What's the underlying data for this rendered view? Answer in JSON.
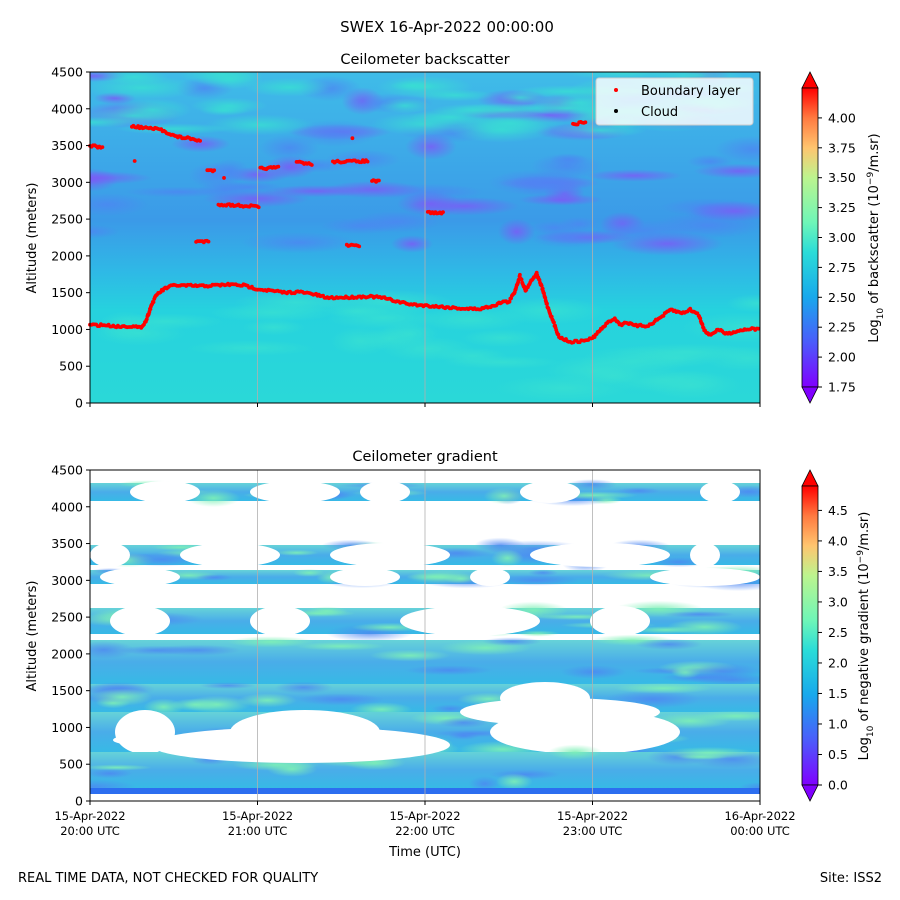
{
  "figure": {
    "title": "SWEX 16-Apr-2022 00:00:00",
    "footer_left": "REAL TIME DATA, NOT CHECKED FOR QUALITY",
    "footer_right": "Site: ISS2",
    "xlabel": "Time (UTC)"
  },
  "chart_data": [
    {
      "type": "heatmap",
      "title": "Ceilometer backscatter",
      "ylabel": "Altitude (meters)",
      "ylim": [
        0,
        4500
      ],
      "yticks": [
        0,
        500,
        1000,
        1500,
        2000,
        2500,
        3000,
        3500,
        4000,
        4500
      ],
      "x_ticks_utc": [
        "2022-04-15T20:00",
        "2022-04-15T21:00",
        "2022-04-15T22:00",
        "2022-04-15T23:00",
        "2022-04-16T00:00"
      ],
      "grid": "vertical lines at x ticks",
      "colorbar": {
        "label": "Log10 of backscatter (10^-9/m.sr)",
        "label_parts": [
          "Log",
          "10",
          " of backscatter (10",
          "−9",
          "/m.sr)"
        ],
        "range": [
          1.75,
          4.25
        ],
        "ticks": [
          "1.75",
          "2.00",
          "2.25",
          "2.50",
          "2.75",
          "3.00",
          "3.25",
          "3.50",
          "3.75",
          "4.00"
        ],
        "colormap": "rainbow",
        "extend": "both"
      },
      "legend": {
        "placement": "top-right",
        "entries": [
          {
            "label": "Boundary layer",
            "color": "#ff0000"
          },
          {
            "label": "Cloud",
            "color": "#000000"
          }
        ]
      },
      "boundary_layer": {
        "main": [
          [
            "2022-04-15T20:00",
            1060
          ],
          [
            "2022-04-15T20:05",
            1060
          ],
          [
            "2022-04-15T20:10",
            1040
          ],
          [
            "2022-04-15T20:15",
            1045
          ],
          [
            "2022-04-15T20:18",
            1020
          ],
          [
            "2022-04-15T20:20",
            1110
          ],
          [
            "2022-04-15T20:22",
            1330
          ],
          [
            "2022-04-15T20:24",
            1480
          ],
          [
            "2022-04-15T20:27",
            1560
          ],
          [
            "2022-04-15T20:30",
            1600
          ],
          [
            "2022-04-15T20:40",
            1590
          ],
          [
            "2022-04-15T20:50",
            1610
          ],
          [
            "2022-04-15T20:55",
            1600
          ],
          [
            "2022-04-15T21:00",
            1550
          ],
          [
            "2022-04-15T21:10",
            1500
          ],
          [
            "2022-04-15T21:15",
            1510
          ],
          [
            "2022-04-15T21:20",
            1480
          ],
          [
            "2022-04-15T21:25",
            1430
          ],
          [
            "2022-04-15T21:35",
            1440
          ],
          [
            "2022-04-15T21:40",
            1450
          ],
          [
            "2022-04-15T21:45",
            1430
          ],
          [
            "2022-04-15T21:50",
            1380
          ],
          [
            "2022-04-15T21:55",
            1340
          ],
          [
            "2022-04-15T22:05",
            1310
          ],
          [
            "2022-04-15T22:15",
            1280
          ],
          [
            "2022-04-15T22:20",
            1280
          ],
          [
            "2022-04-15T22:25",
            1330
          ],
          [
            "2022-04-15T22:28",
            1380
          ],
          [
            "2022-04-15T22:30",
            1370
          ],
          [
            "2022-04-15T22:32",
            1500
          ],
          [
            "2022-04-15T22:34",
            1730
          ],
          [
            "2022-04-15T22:36",
            1530
          ],
          [
            "2022-04-15T22:38",
            1660
          ],
          [
            "2022-04-15T22:40",
            1760
          ],
          [
            "2022-04-15T22:42",
            1560
          ],
          [
            "2022-04-15T22:44",
            1300
          ],
          [
            "2022-04-15T22:46",
            1100
          ],
          [
            "2022-04-15T22:48",
            900
          ],
          [
            "2022-04-15T22:52",
            830
          ],
          [
            "2022-04-15T22:56",
            840
          ],
          [
            "2022-04-15T23:00",
            880
          ],
          [
            "2022-04-15T23:03",
            1000
          ],
          [
            "2022-04-15T23:06",
            1110
          ],
          [
            "2022-04-15T23:08",
            1150
          ],
          [
            "2022-04-15T23:10",
            1060
          ],
          [
            "2022-04-15T23:12",
            1100
          ],
          [
            "2022-04-15T23:15",
            1050
          ],
          [
            "2022-04-15T23:20",
            1050
          ],
          [
            "2022-04-15T23:25",
            1180
          ],
          [
            "2022-04-15T23:28",
            1270
          ],
          [
            "2022-04-15T23:32",
            1220
          ],
          [
            "2022-04-15T23:35",
            1270
          ],
          [
            "2022-04-15T23:38",
            1200
          ],
          [
            "2022-04-15T23:40",
            1000
          ],
          [
            "2022-04-15T23:42",
            920
          ],
          [
            "2022-04-15T23:45",
            1000
          ],
          [
            "2022-04-15T23:48",
            940
          ],
          [
            "2022-04-15T23:52",
            980
          ],
          [
            "2022-04-15T23:56",
            1010
          ],
          [
            "2022-04-16T00:00",
            1000
          ]
        ],
        "segments": [
          [
            [
              "2022-04-15T20:00",
              3500
            ],
            [
              "2022-04-15T20:05",
              3470
            ]
          ],
          [
            [
              "2022-04-15T20:15",
              3760
            ],
            [
              "2022-04-15T20:25",
              3720
            ],
            [
              "2022-04-15T20:31",
              3620
            ],
            [
              "2022-04-15T20:35",
              3600
            ],
            [
              "2022-04-15T20:40",
              3560
            ]
          ],
          [
            [
              "2022-04-15T20:42",
              3160
            ],
            [
              "2022-04-15T20:45",
              3160
            ]
          ],
          [
            [
              "2022-04-15T20:46",
              2700
            ],
            [
              "2022-04-15T21:01",
              2670
            ]
          ],
          [
            [
              "2022-04-15T20:38",
              2190
            ],
            [
              "2022-04-15T20:43",
              2190
            ]
          ],
          [
            [
              "2022-04-15T21:01",
              3190
            ],
            [
              "2022-04-15T21:08",
              3200
            ]
          ],
          [
            [
              "2022-04-15T21:14",
              3280
            ],
            [
              "2022-04-15T21:20",
              3240
            ]
          ],
          [
            [
              "2022-04-15T21:27",
              3280
            ],
            [
              "2022-04-15T21:40",
              3290
            ]
          ],
          [
            [
              "2022-04-15T21:41",
              3020
            ],
            [
              "2022-04-15T21:44",
              3010
            ]
          ],
          [
            [
              "2022-04-15T21:32",
              2140
            ],
            [
              "2022-04-15T21:37",
              2140
            ]
          ],
          [
            [
              "2022-04-15T22:01",
              2590
            ],
            [
              "2022-04-15T22:07",
              2580
            ]
          ],
          [
            [
              "2022-04-15T22:53",
              3790
            ],
            [
              "2022-04-15T22:58",
              3820
            ]
          ]
        ],
        "points": [
          [
            "2022-04-15T20:16",
            3290
          ],
          [
            "2022-04-15T20:48",
            3060
          ],
          [
            "2022-04-15T21:34",
            3600
          ]
        ]
      }
    },
    {
      "type": "heatmap",
      "title": "Ceilometer gradient",
      "ylabel": "Altitude (meters)",
      "xlabel": "Time (UTC)",
      "ylim": [
        0,
        4500
      ],
      "yticks": [
        0,
        500,
        1000,
        1500,
        2000,
        2500,
        3000,
        3500,
        4000,
        4500
      ],
      "x_ticks": [
        {
          "line1": "15-Apr-2022",
          "line2": "20:00 UTC"
        },
        {
          "line1": "15-Apr-2022",
          "line2": "21:00 UTC"
        },
        {
          "line1": "15-Apr-2022",
          "line2": "22:00 UTC"
        },
        {
          "line1": "15-Apr-2022",
          "line2": "23:00 UTC"
        },
        {
          "line1": "16-Apr-2022",
          "line2": "00:00 UTC"
        }
      ],
      "grid": "vertical lines at x ticks",
      "colorbar": {
        "label": "Log10 of negative gradient (10^-9/m.sr)",
        "label_parts": [
          "Log",
          "10",
          " of negative gradient (10",
          "−9",
          "/m.sr)"
        ],
        "range": [
          0,
          4.9
        ],
        "ticks": [
          "0.0",
          "0.5",
          "1.0",
          "1.5",
          "2.0",
          "2.5",
          "3.0",
          "3.5",
          "4.0",
          "4.5"
        ],
        "colormap": "rainbow",
        "extend": "both"
      }
    }
  ]
}
